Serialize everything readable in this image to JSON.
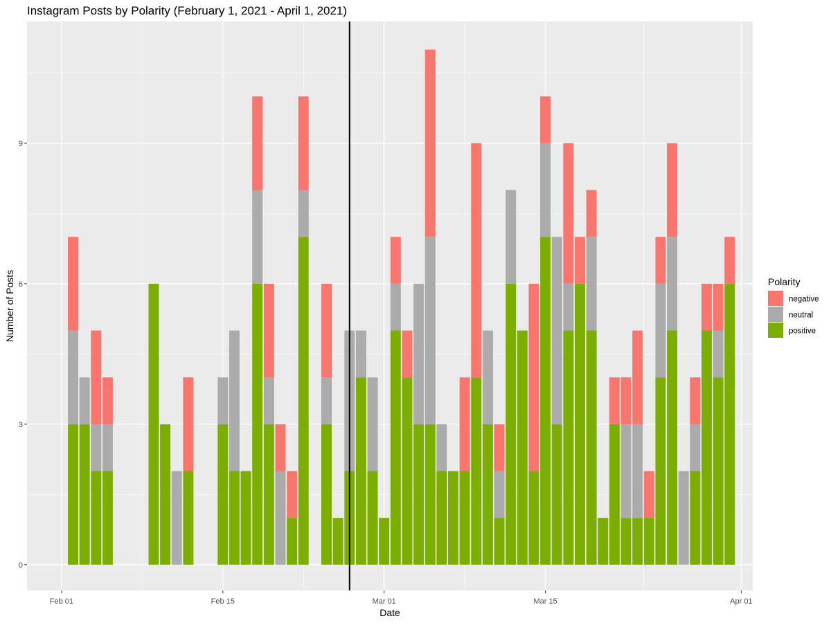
{
  "chart_data": {
    "type": "bar",
    "stacked": true,
    "title": "Instagram Posts by Polarity (February 1, 2021 - April 1, 2021)",
    "xlabel": "Date",
    "ylabel": "Number of Posts",
    "x_ticks": [
      {
        "date": "2021-02-01",
        "label": "Feb 01"
      },
      {
        "date": "2021-02-15",
        "label": "Feb 15"
      },
      {
        "date": "2021-03-01",
        "label": "Mar 01"
      },
      {
        "date": "2021-03-15",
        "label": "Mar 15"
      },
      {
        "date": "2021-04-01",
        "label": "Apr 01"
      }
    ],
    "x_range": [
      "2021-01-29",
      "2021-04-02"
    ],
    "y_ticks": [
      0,
      3,
      6,
      9
    ],
    "ylim": [
      -0.55,
      11.6
    ],
    "reference_line_date": "2021-02-26",
    "legend": {
      "title": "Polarity",
      "position": "right"
    },
    "grid": true,
    "colors": {
      "negative": "#F8766D",
      "neutral": "#ABABAB",
      "positive": "#7CAE00"
    },
    "series": [
      {
        "name": "positive",
        "color": "#7CAE00"
      },
      {
        "name": "neutral",
        "color": "#ABABAB"
      },
      {
        "name": "negative",
        "color": "#F8766D"
      }
    ],
    "dates": [
      "2021-02-02",
      "2021-02-03",
      "2021-02-04",
      "2021-02-05",
      "2021-02-09",
      "2021-02-10",
      "2021-02-11",
      "2021-02-12",
      "2021-02-15",
      "2021-02-16",
      "2021-02-17",
      "2021-02-18",
      "2021-02-19",
      "2021-02-20",
      "2021-02-21",
      "2021-02-22",
      "2021-02-24",
      "2021-02-25",
      "2021-02-26",
      "2021-02-27",
      "2021-02-28",
      "2021-03-01",
      "2021-03-02",
      "2021-03-03",
      "2021-03-04",
      "2021-03-05",
      "2021-03-06",
      "2021-03-07",
      "2021-03-08",
      "2021-03-09",
      "2021-03-10",
      "2021-03-11",
      "2021-03-12",
      "2021-03-13",
      "2021-03-14",
      "2021-03-15",
      "2021-03-16",
      "2021-03-17",
      "2021-03-18",
      "2021-03-19",
      "2021-03-20",
      "2021-03-21",
      "2021-03-22",
      "2021-03-23",
      "2021-03-24",
      "2021-03-25",
      "2021-03-26",
      "2021-03-27",
      "2021-03-28",
      "2021-03-29",
      "2021-03-30",
      "2021-03-31"
    ],
    "positive": [
      3,
      3,
      2,
      2,
      6,
      3,
      0,
      2,
      3,
      2,
      2,
      6,
      3,
      0,
      1,
      7,
      3,
      1,
      2,
      4,
      2,
      1,
      5,
      4,
      3,
      3,
      2,
      2,
      2,
      4,
      3,
      1,
      6,
      5,
      2,
      7,
      3,
      5,
      6,
      5,
      1,
      3,
      1,
      1,
      1,
      4,
      5,
      0,
      2,
      5,
      4,
      6
    ],
    "neutral": [
      2,
      1,
      1,
      1,
      0,
      0,
      2,
      0,
      1,
      3,
      0,
      2,
      1,
      2,
      0,
      1,
      1,
      0,
      3,
      1,
      2,
      0,
      1,
      0,
      3,
      4,
      1,
      0,
      0,
      0,
      2,
      1,
      2,
      0,
      0,
      2,
      4,
      1,
      0,
      2,
      0,
      0,
      2,
      2,
      0,
      2,
      2,
      2,
      1,
      0,
      1,
      0
    ],
    "negative": [
      2,
      0,
      2,
      1,
      0,
      0,
      0,
      2,
      0,
      0,
      0,
      2,
      2,
      1,
      1,
      2,
      2,
      0,
      0,
      0,
      0,
      0,
      1,
      1,
      0,
      4,
      0,
      0,
      2,
      5,
      0,
      1,
      0,
      0,
      4,
      1,
      0,
      3,
      1,
      1,
      0,
      1,
      1,
      2,
      1,
      1,
      2,
      0,
      1,
      1,
      1,
      1
    ]
  }
}
